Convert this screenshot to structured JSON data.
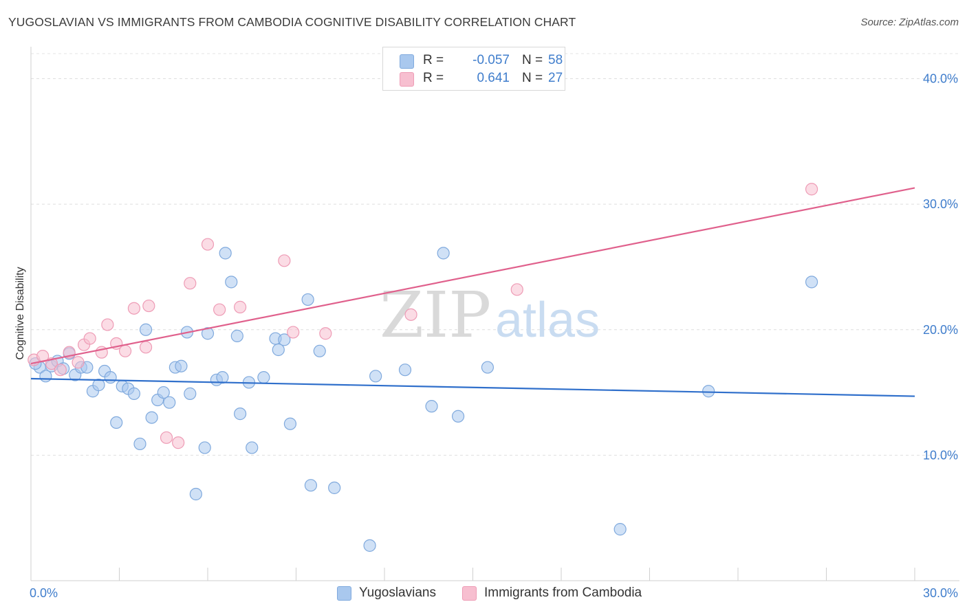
{
  "title": "YUGOSLAVIAN VS IMMIGRANTS FROM CAMBODIA COGNITIVE DISABILITY CORRELATION CHART",
  "source": "Source: ZipAtlas.com",
  "watermark": {
    "zip": "ZIP",
    "atlas": "atlas"
  },
  "colors": {
    "yugoslavians_fill": "#a9c8ee",
    "yugoslavians_stroke": "#7fa9dd",
    "yugoslavians_line": "#2f6fcb",
    "cambodia_fill": "#f7bfd0",
    "cambodia_stroke": "#ee9bb5",
    "cambodia_line": "#e0608c",
    "tick_text": "#3f7dcc"
  },
  "legend": {
    "rows": [
      {
        "r_label": "R =",
        "r_value": "-0.057",
        "n_label": "N =",
        "n_value": "58"
      },
      {
        "r_label": "R =",
        "r_value": "0.641",
        "n_label": "N =",
        "n_value": "27"
      }
    ]
  },
  "bottom_legend": [
    "Yugoslavians",
    "Immigrants from Cambodia"
  ],
  "chart_data": {
    "type": "scatter",
    "title": "YUGOSLAVIAN VS IMMIGRANTS FROM CAMBODIA COGNITIVE DISABILITY CORRELATION CHART",
    "xlabel": "",
    "ylabel": "Cognitive Disability",
    "xlim": [
      0,
      30
    ],
    "ylim": [
      0,
      42
    ],
    "x_tick_labels": [
      "0.0%",
      "30.0%"
    ],
    "y_ticks": [
      10,
      20,
      30,
      40
    ],
    "y_tick_labels": [
      "10.0%",
      "20.0%",
      "30.0%",
      "40.0%"
    ],
    "grid": "horizontal dashed",
    "legend_position": "top-center",
    "series": [
      {
        "name": "Yugoslavians",
        "regression": {
          "x": [
            0,
            30
          ],
          "y": [
            16.1,
            14.7
          ]
        },
        "points": [
          [
            0.3,
            17.0
          ],
          [
            0.5,
            16.3
          ],
          [
            0.7,
            17.1
          ],
          [
            0.9,
            17.5
          ],
          [
            1.1,
            16.9
          ],
          [
            1.3,
            18.1
          ],
          [
            1.5,
            16.4
          ],
          [
            1.7,
            17.0
          ],
          [
            1.9,
            17.0
          ],
          [
            2.1,
            15.1
          ],
          [
            2.3,
            15.6
          ],
          [
            2.5,
            16.7
          ],
          [
            2.7,
            16.2
          ],
          [
            2.9,
            12.6
          ],
          [
            3.1,
            15.5
          ],
          [
            3.3,
            15.3
          ],
          [
            3.5,
            14.9
          ],
          [
            3.7,
            10.9
          ],
          [
            3.9,
            20.0
          ],
          [
            4.1,
            13.0
          ],
          [
            4.3,
            14.4
          ],
          [
            4.5,
            15.0
          ],
          [
            4.7,
            14.2
          ],
          [
            4.9,
            17.0
          ],
          [
            5.1,
            17.1
          ],
          [
            5.3,
            19.8
          ],
          [
            5.4,
            14.9
          ],
          [
            5.6,
            6.9
          ],
          [
            5.9,
            10.6
          ],
          [
            6.0,
            19.7
          ],
          [
            6.3,
            16.0
          ],
          [
            6.5,
            16.2
          ],
          [
            6.6,
            26.1
          ],
          [
            6.8,
            23.8
          ],
          [
            7.0,
            19.5
          ],
          [
            7.1,
            13.3
          ],
          [
            7.4,
            15.8
          ],
          [
            7.5,
            10.6
          ],
          [
            7.9,
            16.2
          ],
          [
            8.3,
            19.3
          ],
          [
            8.4,
            18.4
          ],
          [
            8.6,
            19.2
          ],
          [
            8.8,
            12.5
          ],
          [
            9.4,
            22.4
          ],
          [
            9.5,
            7.6
          ],
          [
            9.8,
            18.3
          ],
          [
            10.3,
            7.4
          ],
          [
            11.5,
            2.8
          ],
          [
            11.7,
            16.3
          ],
          [
            12.7,
            16.8
          ],
          [
            13.6,
            13.9
          ],
          [
            14.0,
            26.1
          ],
          [
            14.5,
            13.1
          ],
          [
            15.5,
            17.0
          ],
          [
            20.0,
            4.1
          ],
          [
            23.0,
            15.1
          ],
          [
            26.5,
            23.8
          ],
          [
            0.15,
            17.3
          ]
        ]
      },
      {
        "name": "Immigrants from Cambodia",
        "regression": {
          "x": [
            0,
            30
          ],
          "y": [
            17.3,
            31.3
          ]
        },
        "points": [
          [
            0.1,
            17.6
          ],
          [
            0.4,
            17.9
          ],
          [
            0.7,
            17.3
          ],
          [
            1.0,
            16.8
          ],
          [
            1.3,
            18.2
          ],
          [
            1.6,
            17.4
          ],
          [
            1.8,
            18.8
          ],
          [
            2.0,
            19.3
          ],
          [
            2.4,
            18.2
          ],
          [
            2.6,
            20.4
          ],
          [
            2.9,
            18.9
          ],
          [
            3.2,
            18.3
          ],
          [
            3.5,
            21.7
          ],
          [
            3.9,
            18.6
          ],
          [
            4.0,
            21.9
          ],
          [
            4.6,
            11.4
          ],
          [
            5.0,
            11.0
          ],
          [
            5.4,
            23.7
          ],
          [
            6.0,
            26.8
          ],
          [
            6.4,
            21.6
          ],
          [
            7.1,
            21.8
          ],
          [
            8.6,
            25.5
          ],
          [
            8.9,
            19.8
          ],
          [
            10.0,
            19.7
          ],
          [
            12.9,
            21.2
          ],
          [
            16.5,
            23.2
          ],
          [
            26.5,
            31.2
          ]
        ]
      }
    ]
  }
}
